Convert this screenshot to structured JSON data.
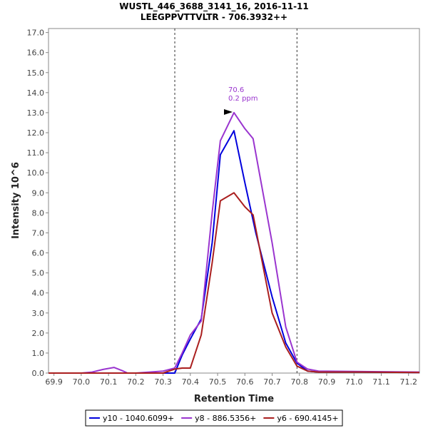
{
  "chart_data": {
    "type": "line",
    "title": "WUSTL_446_3688_3141_16, 2016-11-11",
    "subtitle": "LEEGPPVTTVLTR - 706.3932++",
    "xlabel": "Retention Time",
    "ylabel": "Intensity 10^6",
    "xlim": [
      69.88,
      71.24
    ],
    "ylim": [
      0,
      17.2
    ],
    "x_ticks": [
      "69.9",
      "70.0",
      "70.1",
      "70.2",
      "70.3",
      "70.4",
      "70.5",
      "70.6",
      "70.7",
      "70.8",
      "70.9",
      "71.0",
      "71.1",
      "71.2"
    ],
    "y_ticks": [
      "0.0",
      "1.0",
      "2.0",
      "3.0",
      "4.0",
      "5.0",
      "6.0",
      "7.0",
      "8.0",
      "9.0",
      "10.0",
      "11.0",
      "12.0",
      "13.0",
      "14.0",
      "15.0",
      "16.0",
      "17.0"
    ],
    "boundaries": [
      70.343,
      70.791
    ],
    "peak_annotation": {
      "x": 70.56,
      "y": 13.0,
      "lines": [
        "70.6",
        "0.2 ppm"
      ],
      "color": "#9a35cf"
    },
    "grid": false,
    "legend_position": "bottom",
    "series": [
      {
        "name": "y10 - 1040.6099+",
        "color": "#0000dd",
        "x": [
          69.88,
          70.0,
          70.05,
          70.1,
          70.15,
          70.2,
          70.3,
          70.343,
          70.37,
          70.4,
          70.44,
          70.48,
          70.51,
          70.56,
          70.6,
          70.64,
          70.7,
          70.75,
          70.791,
          70.83,
          70.87,
          71.0,
          71.24
        ],
        "y": [
          0,
          0,
          0,
          0,
          0,
          0,
          0,
          0,
          0.9,
          1.7,
          2.7,
          6.5,
          10.9,
          12.1,
          9.5,
          7.0,
          3.8,
          1.5,
          0.5,
          0.1,
          0.05,
          0.05,
          0.03
        ]
      },
      {
        "name": "y8 - 886.5356+",
        "color": "#9a35cf",
        "x": [
          69.88,
          70.0,
          70.04,
          70.08,
          70.12,
          70.15,
          70.17,
          70.2,
          70.3,
          70.343,
          70.37,
          70.4,
          70.44,
          70.48,
          70.51,
          70.56,
          70.6,
          70.63,
          70.7,
          70.75,
          70.791,
          70.83,
          70.87,
          71.0,
          71.24
        ],
        "y": [
          0,
          0,
          0.05,
          0.18,
          0.28,
          0.12,
          0,
          0,
          0.1,
          0.25,
          1.0,
          1.9,
          2.6,
          8.0,
          11.6,
          13.0,
          12.2,
          11.7,
          6.5,
          2.3,
          0.55,
          0.2,
          0.1,
          0.08,
          0.05
        ]
      },
      {
        "name": "y6 - 690.4145+",
        "color": "#aa1f1f",
        "x": [
          69.88,
          70.0,
          70.2,
          70.3,
          70.343,
          70.37,
          70.4,
          70.44,
          70.48,
          70.51,
          70.56,
          70.6,
          70.63,
          70.7,
          70.75,
          70.791,
          70.83,
          70.87,
          71.0,
          71.24
        ],
        "y": [
          0,
          0,
          0,
          0,
          0.2,
          0.25,
          0.25,
          1.9,
          5.5,
          8.6,
          9.0,
          8.3,
          7.9,
          3.0,
          1.3,
          0.35,
          0.1,
          0.05,
          0.05,
          0.03
        ]
      }
    ]
  }
}
